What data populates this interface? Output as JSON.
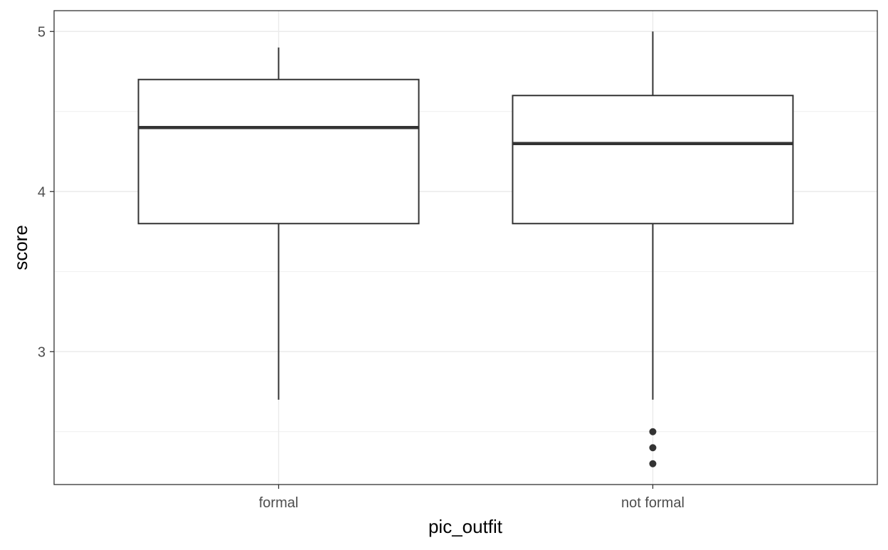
{
  "chart_data": {
    "type": "boxplot",
    "title": "",
    "xlabel": "pic_outfit",
    "ylabel": "score",
    "ylim": [
      2.17,
      5.13
    ],
    "y_ticks": [
      3,
      4,
      5
    ],
    "y_minor_ticks": [
      2.5,
      3.5,
      4.5
    ],
    "grid": true,
    "categories": [
      "formal",
      "not formal"
    ],
    "boxes": [
      {
        "category": "formal",
        "lower_whisker": 2.7,
        "q1": 3.8,
        "median": 4.4,
        "q3": 4.7,
        "upper_whisker": 4.9,
        "outliers": []
      },
      {
        "category": "not formal",
        "lower_whisker": 2.7,
        "q1": 3.8,
        "median": 4.3,
        "q3": 4.6,
        "upper_whisker": 5.0,
        "outliers": [
          2.5,
          2.4,
          2.3
        ]
      }
    ]
  },
  "colors": {
    "box_stroke": "#333333",
    "box_fill": "#ffffff",
    "grid": "#ebebeb",
    "panel_border": "#333333",
    "outlier": "#333333"
  }
}
